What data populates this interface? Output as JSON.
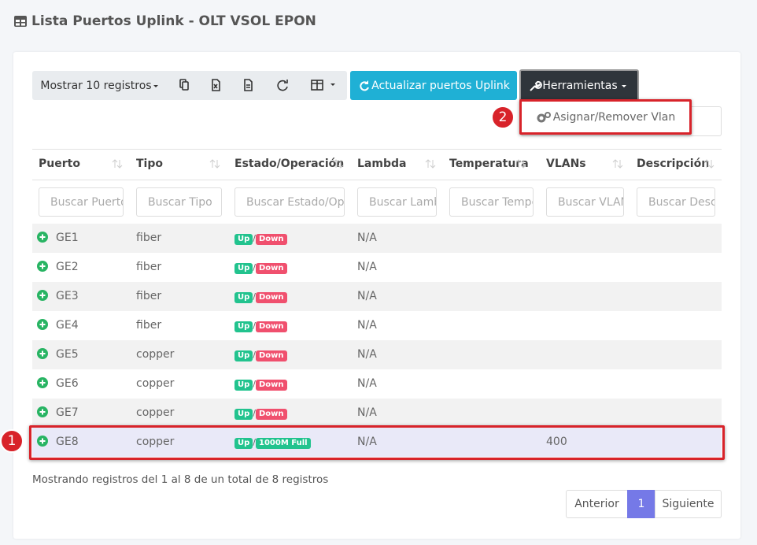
{
  "header": {
    "title": "Lista Puertos Uplink - OLT VSOL EPON"
  },
  "toolbar": {
    "length_menu": "Mostrar 10 registros",
    "refresh_button": "Actualizar puertos Uplink",
    "tools_button": "Herramientas",
    "tools_menu": [
      "Asignar/Remover Vlan"
    ]
  },
  "callouts": [
    "1",
    "2"
  ],
  "table": {
    "columns": [
      "Puerto",
      "Tipo",
      "Estado/Operación",
      "Lambda",
      "Temperatura",
      "VLANs",
      "Descripción"
    ],
    "search": [
      "Buscar Puerto",
      "Buscar Tipo",
      "Buscar Estado/Operación",
      "Buscar Lambda",
      "Buscar Temperatura",
      "Buscar VLANs",
      "Buscar Descripción"
    ],
    "status_separator": "/",
    "rows": [
      {
        "port": "GE1",
        "type": "fiber",
        "state": "Up",
        "operation": "Down",
        "lambda": "N/A",
        "vlans": null
      },
      {
        "port": "GE2",
        "type": "fiber",
        "state": "Up",
        "operation": "Down",
        "lambda": "N/A",
        "vlans": null
      },
      {
        "port": "GE3",
        "type": "fiber",
        "state": "Up",
        "operation": "Down",
        "lambda": "N/A",
        "vlans": null
      },
      {
        "port": "GE4",
        "type": "fiber",
        "state": "Up",
        "operation": "Down",
        "lambda": "N/A",
        "vlans": null
      },
      {
        "port": "GE5",
        "type": "copper",
        "state": "Up",
        "operation": "Down",
        "lambda": "N/A",
        "vlans": null
      },
      {
        "port": "GE6",
        "type": "copper",
        "state": "Up",
        "operation": "Down",
        "lambda": "N/A",
        "vlans": null
      },
      {
        "port": "GE7",
        "type": "copper",
        "state": "Up",
        "operation": "Down",
        "lambda": "N/A",
        "vlans": null
      },
      {
        "port": "GE8",
        "type": "copper",
        "state": "Up",
        "operation": "1000M Full",
        "lambda": "N/A",
        "vlans": "400"
      }
    ]
  },
  "footer": {
    "info": "Mostrando registros del 1 al 8 de un total de 8 registros",
    "pagination": [
      "Anterior",
      "1",
      "Siguiente"
    ]
  }
}
